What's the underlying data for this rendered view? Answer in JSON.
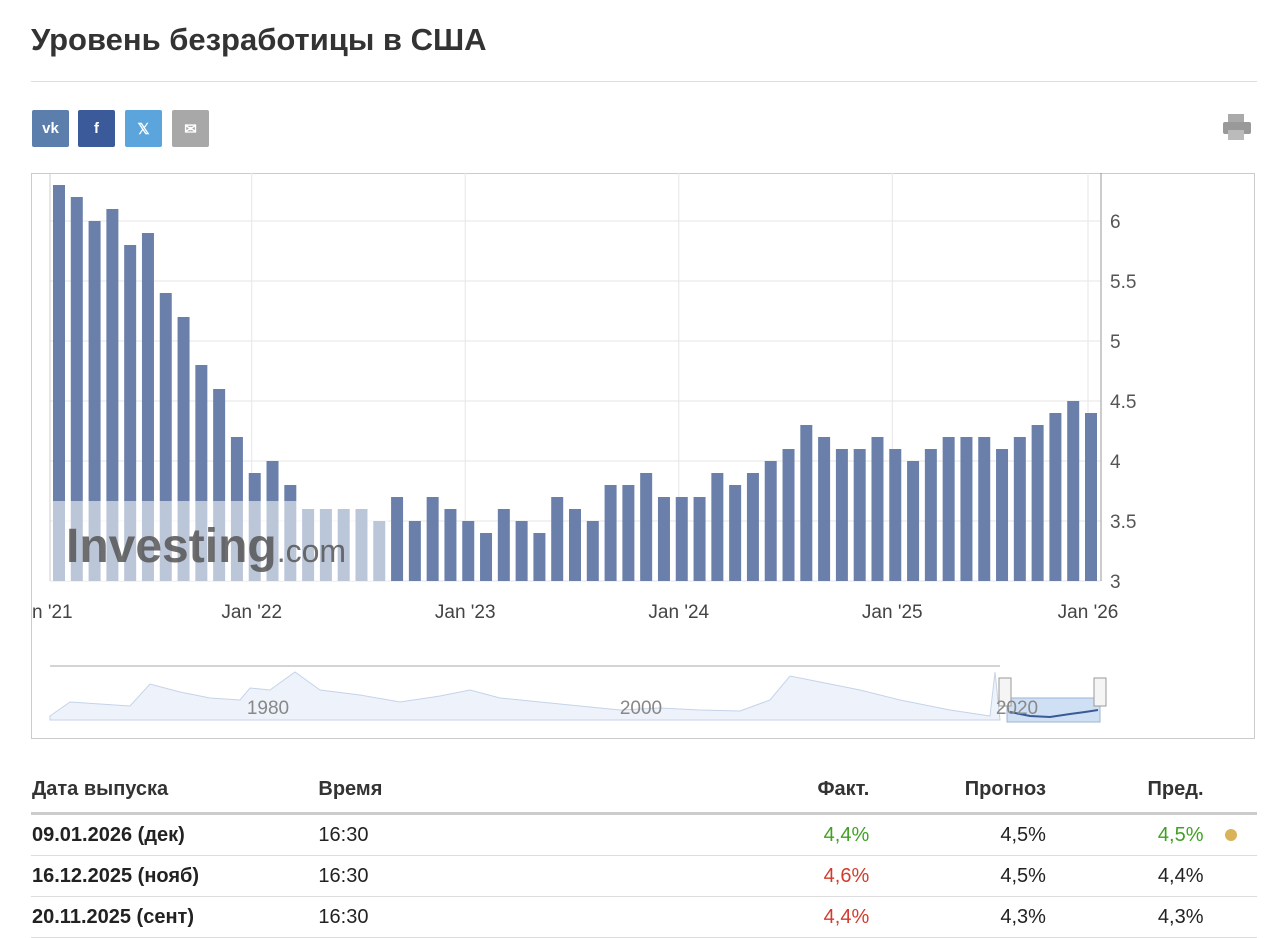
{
  "header": {
    "title": "Уровень безработицы в США"
  },
  "chart_data": {
    "type": "bar",
    "color": "#6a80aa",
    "categories": [
      null,
      null,
      null,
      null,
      null,
      null,
      null,
      null,
      null,
      null,
      null,
      "Jan '22",
      null,
      null,
      null,
      null,
      null,
      null,
      null,
      null,
      null,
      null,
      null,
      "Jan '23",
      null,
      null,
      null,
      null,
      null,
      null,
      null,
      null,
      null,
      null,
      null,
      "Jan '24",
      null,
      null,
      null,
      null,
      null,
      null,
      null,
      null,
      null,
      null,
      null,
      "Jan '25",
      null,
      null,
      null,
      null,
      null,
      null,
      null,
      null,
      null,
      null,
      "Jan '26"
    ],
    "values": [
      6.3,
      6.2,
      6.0,
      6.1,
      5.8,
      5.9,
      5.4,
      5.2,
      4.8,
      4.6,
      4.2,
      3.9,
      4.0,
      3.8,
      3.6,
      3.6,
      3.6,
      3.6,
      3.5,
      3.7,
      3.5,
      3.7,
      3.6,
      3.5,
      3.4,
      3.6,
      3.5,
      3.4,
      3.7,
      3.6,
      3.5,
      3.8,
      3.8,
      3.9,
      3.7,
      3.7,
      3.7,
      3.9,
      3.8,
      3.9,
      4.0,
      4.1,
      4.3,
      4.2,
      4.1,
      4.1,
      4.2,
      4.1,
      4.0,
      4.1,
      4.2,
      4.2,
      4.2,
      4.1,
      4.2,
      4.3,
      4.4,
      4.5,
      4.4
    ],
    "left_clipped_label": "n '21",
    "ylim": [
      3,
      6.4
    ],
    "yticks": [
      3,
      3.5,
      4,
      4.5,
      5,
      5.5,
      6
    ],
    "grid": true,
    "watermark": "Investing",
    "watermark_suffix": ".com",
    "navigator_labels": [
      "1980",
      "2000",
      "2020"
    ]
  },
  "table": {
    "columns": [
      "Дата выпуска",
      "Время",
      "Факт.",
      "Прогноз",
      "Пред."
    ],
    "rows": [
      [
        "09.01.2026 (дек)",
        "16:30",
        "4,4%",
        "4,5%",
        "4,5%"
      ],
      [
        "16.12.2025 (нояб)",
        "16:30",
        "4,6%",
        "4,5%",
        "4,4%"
      ],
      [
        "20.11.2025 (сент)",
        "16:30",
        "4,4%",
        "4,3%",
        "4,3%"
      ]
    ],
    "actual_colors": [
      "#41a024",
      "#d33b2c",
      "#d33b2c"
    ],
    "previous_colors": [
      "#41a024",
      "#222222",
      "#222222"
    ]
  }
}
